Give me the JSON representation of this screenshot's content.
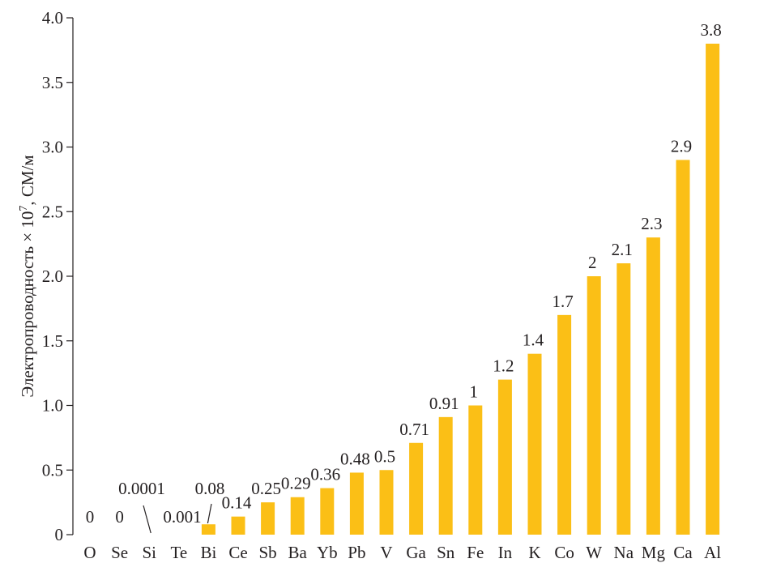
{
  "chart_data": {
    "type": "bar",
    "title": "",
    "xlabel": "",
    "ylabel": "Электропроводность × 10",
    "ylabel_sup": "7",
    "ylabel_unit": ", СМ/м",
    "ylim": [
      0,
      4.0
    ],
    "yticks": [
      0,
      0.5,
      1.0,
      1.5,
      2.0,
      2.5,
      3.0,
      3.5,
      4.0
    ],
    "ytick_labels": [
      "0",
      "0.5",
      "1.0",
      "1.5",
      "2.0",
      "2.5",
      "3.0",
      "3.5",
      "4.0"
    ],
    "bar_color": "#fbbf16",
    "grid": false,
    "categories": [
      "O",
      "Se",
      "Si",
      "Te",
      "Bi",
      "Ce",
      "Sb",
      "Ba",
      "Yb",
      "Pb",
      "V",
      "Ga",
      "Sn",
      "Fe",
      "In",
      "K",
      "Co",
      "W",
      "Na",
      "Mg",
      "Ca",
      "Al"
    ],
    "values": [
      0,
      0,
      0.0001,
      0.001,
      0.08,
      0.14,
      0.25,
      0.29,
      0.36,
      0.48,
      0.5,
      0.71,
      0.91,
      1,
      1.2,
      1.4,
      1.7,
      2,
      2.1,
      2.3,
      2.9,
      3.8
    ],
    "data_labels": [
      "0",
      "0",
      "0.0001",
      "0.001",
      "0.08",
      "0.14",
      "0.25",
      "0.29",
      "0.36",
      "0.48",
      "0.5",
      "0.71",
      "0.91",
      "1",
      "1.2",
      "1.4",
      "1.7",
      "2",
      "2.1",
      "2.3",
      "2.9",
      "3.8"
    ]
  }
}
